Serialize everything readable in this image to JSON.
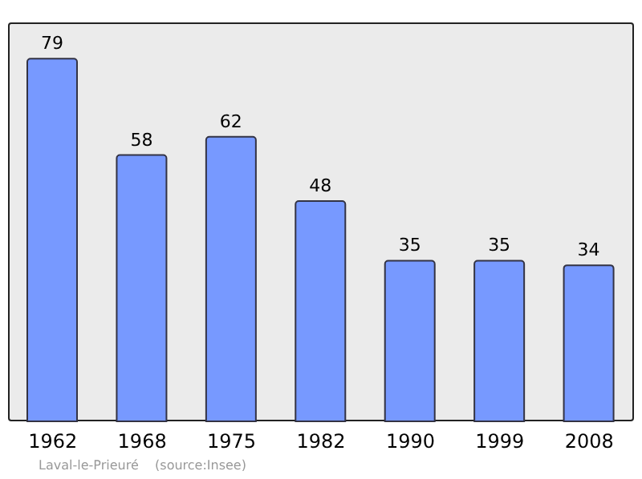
{
  "chart_data": {
    "type": "bar",
    "categories": [
      "1962",
      "1968",
      "1975",
      "1982",
      "1990",
      "1999",
      "2008"
    ],
    "values": [
      79,
      58,
      62,
      48,
      35,
      35,
      34
    ],
    "color": "#7799ff",
    "data_labels": true,
    "annotations": [
      "Laval-le-Prieuré    (source:Insee)"
    ]
  }
}
